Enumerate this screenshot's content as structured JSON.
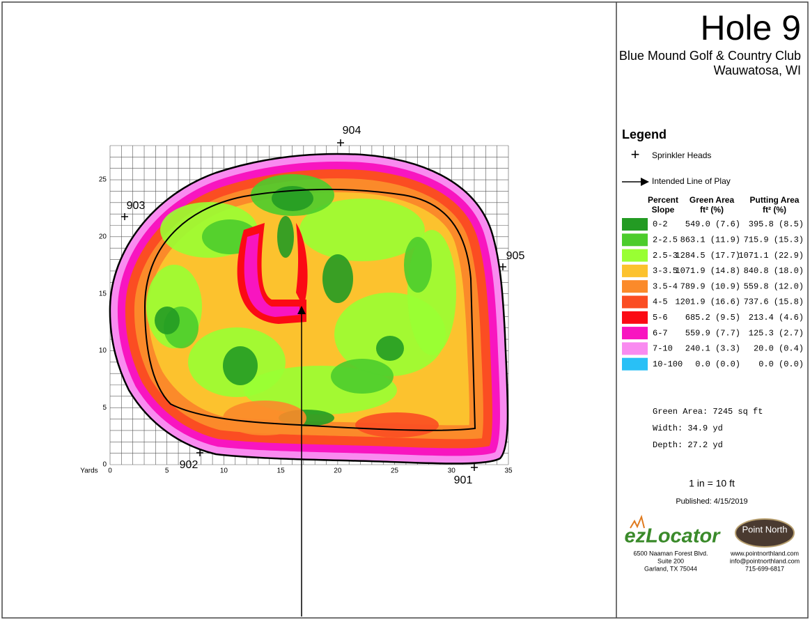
{
  "header": {
    "title": "Hole 9",
    "club": "Blue Mound Golf & Country Club",
    "location": "Wauwatosa, WI"
  },
  "map": {
    "x_label": "Yards",
    "xlim": [
      0,
      35
    ],
    "ylim": [
      0,
      28
    ],
    "xticks": [
      0,
      5,
      10,
      15,
      20,
      25,
      30,
      35
    ],
    "yticks": [
      0,
      5,
      10,
      15,
      20,
      25
    ],
    "sprinklers": [
      "901",
      "902",
      "903",
      "904",
      "905"
    ]
  },
  "legend": {
    "title": "Legend",
    "sprinkler_label": "Sprinkler Heads",
    "line_label": "Intended Line of Play",
    "headers": {
      "slope": [
        "Percent",
        "Slope"
      ],
      "green_area": [
        "Green Area",
        "ft² (%)"
      ],
      "putting_area": [
        "Putting Area",
        "ft² (%)"
      ]
    },
    "rows": [
      {
        "slope": "0-2",
        "green_area": "549.0 (7.6)",
        "putting_area": "395.8 (8.5)",
        "color": "#239b23"
      },
      {
        "slope": "2-2.5",
        "green_area": "863.1 (11.9)",
        "putting_area": "715.9 (15.3)",
        "color": "#4ccc2c"
      },
      {
        "slope": "2.5-3",
        "green_area": "1284.5 (17.7)",
        "putting_area": "1071.1 (22.9)",
        "color": "#99ff33"
      },
      {
        "slope": "3-3.5",
        "green_area": "1071.9 (14.8)",
        "putting_area": "840.8 (18.0)",
        "color": "#fcc22e"
      },
      {
        "slope": "3.5-4",
        "green_area": "789.9 (10.9)",
        "putting_area": "559.8 (12.0)",
        "color": "#fb8a2a"
      },
      {
        "slope": "4-5",
        "green_area": "1201.9 (16.6)",
        "putting_area": "737.6 (15.8)",
        "color": "#fb4d22"
      },
      {
        "slope": "5-6",
        "green_area": "685.2 (9.5)",
        "putting_area": "213.4 (4.6)",
        "color": "#fb0a14"
      },
      {
        "slope": "6-7",
        "green_area": "559.9 (7.7)",
        "putting_area": "125.3 (2.7)",
        "color": "#f815c0"
      },
      {
        "slope": "7-10",
        "green_area": "240.1 (3.3)",
        "putting_area": "20.0 (0.4)",
        "color": "#f98bf0"
      },
      {
        "slope": "10-100",
        "green_area": "0.0 (0.0)",
        "putting_area": "0.0 (0.0)",
        "color": "#29c0f6"
      }
    ]
  },
  "stats": [
    "Green Area: 7245 sq ft",
    "Width: 34.9 yd",
    "Depth: 27.2 yd"
  ],
  "scale": "1 in = 10 ft",
  "published": "Published: 4/15/2019",
  "ezlocator": {
    "logo": "ezLocator",
    "address": [
      "6500 Naaman Forest Blvd.",
      "Suite 200",
      "Garland, TX  75044"
    ]
  },
  "pointnorth": {
    "logo": "Point North",
    "contact": [
      "www.pointnorthland.com",
      "info@pointnorthland.com",
      "715-699-6817"
    ]
  }
}
